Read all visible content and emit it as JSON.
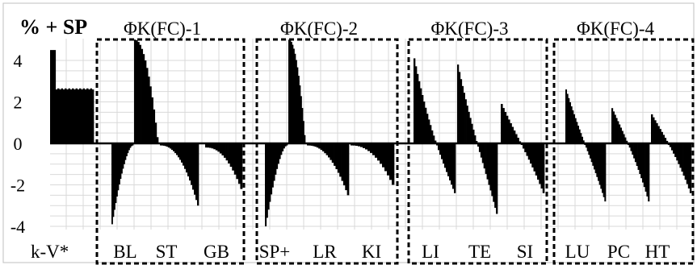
{
  "chart_data": {
    "type": "bar",
    "title": "% + SP",
    "xlabel": "k-V*",
    "ylabel": "",
    "ylim": [
      -4,
      5
    ],
    "yticks": [
      4,
      2,
      0,
      -2,
      -4
    ],
    "grid": true,
    "groups": [
      {
        "label": "ΦK(FC)-1",
        "channels": [
          "BL",
          "ST",
          "GB"
        ]
      },
      {
        "label": "ΦK(FC)-2",
        "channels": [
          "SP+",
          "LR",
          "KI"
        ]
      },
      {
        "label": "ΦK(FC)-3",
        "channels": [
          "LI",
          "TE",
          "SI"
        ]
      },
      {
        "label": "ΦK(FC)-4",
        "channels": [
          "LU",
          "PC",
          "HT"
        ]
      }
    ],
    "segments": [
      {
        "name": "k-V*",
        "group": -1,
        "shape": "plateau",
        "start": 4.5,
        "end": 2.6,
        "n": 24
      },
      {
        "name": "BL",
        "group": 0,
        "shape": "neg",
        "start": -3.9,
        "end": -0.1,
        "n": 18
      },
      {
        "name": "",
        "group": 0,
        "shape": "pos",
        "start": 5.0,
        "end": 0.3,
        "n": 14
      },
      {
        "name": "ST",
        "group": 0,
        "shape": "negrise",
        "start": -0.1,
        "end": -3.0,
        "n": 24
      },
      {
        "name": "GB",
        "group": 0,
        "shape": "negrise",
        "start": -0.2,
        "end": -2.2,
        "n": 18
      },
      {
        "name": "SP+",
        "group": 1,
        "shape": "neg",
        "start": -4.0,
        "end": -0.1,
        "n": 16
      },
      {
        "name": "",
        "group": 1,
        "shape": "pos",
        "start": 5.0,
        "end": 0.4,
        "n": 14
      },
      {
        "name": "LR",
        "group": 1,
        "shape": "negrise",
        "start": -0.1,
        "end": -2.5,
        "n": 22
      },
      {
        "name": "KI",
        "group": 1,
        "shape": "negrise",
        "start": -0.1,
        "end": -2.0,
        "n": 18
      },
      {
        "name": "LI",
        "group": 2,
        "shape": "posneg",
        "start": 4.1,
        "end": -2.4,
        "n": 26
      },
      {
        "name": "TE",
        "group": 2,
        "shape": "posneg",
        "start": 3.8,
        "end": -3.4,
        "n": 26
      },
      {
        "name": "SI",
        "group": 2,
        "shape": "posneg",
        "start": 1.9,
        "end": -2.4,
        "n": 24
      },
      {
        "name": "LU",
        "group": 3,
        "shape": "posneg",
        "start": 2.6,
        "end": -2.8,
        "n": 30
      },
      {
        "name": "PC",
        "group": 3,
        "shape": "posneg",
        "start": 1.7,
        "end": -2.8,
        "n": 26
      },
      {
        "name": "HT",
        "group": 3,
        "shape": "posneg",
        "start": 1.4,
        "end": -2.4,
        "n": 24
      }
    ]
  }
}
